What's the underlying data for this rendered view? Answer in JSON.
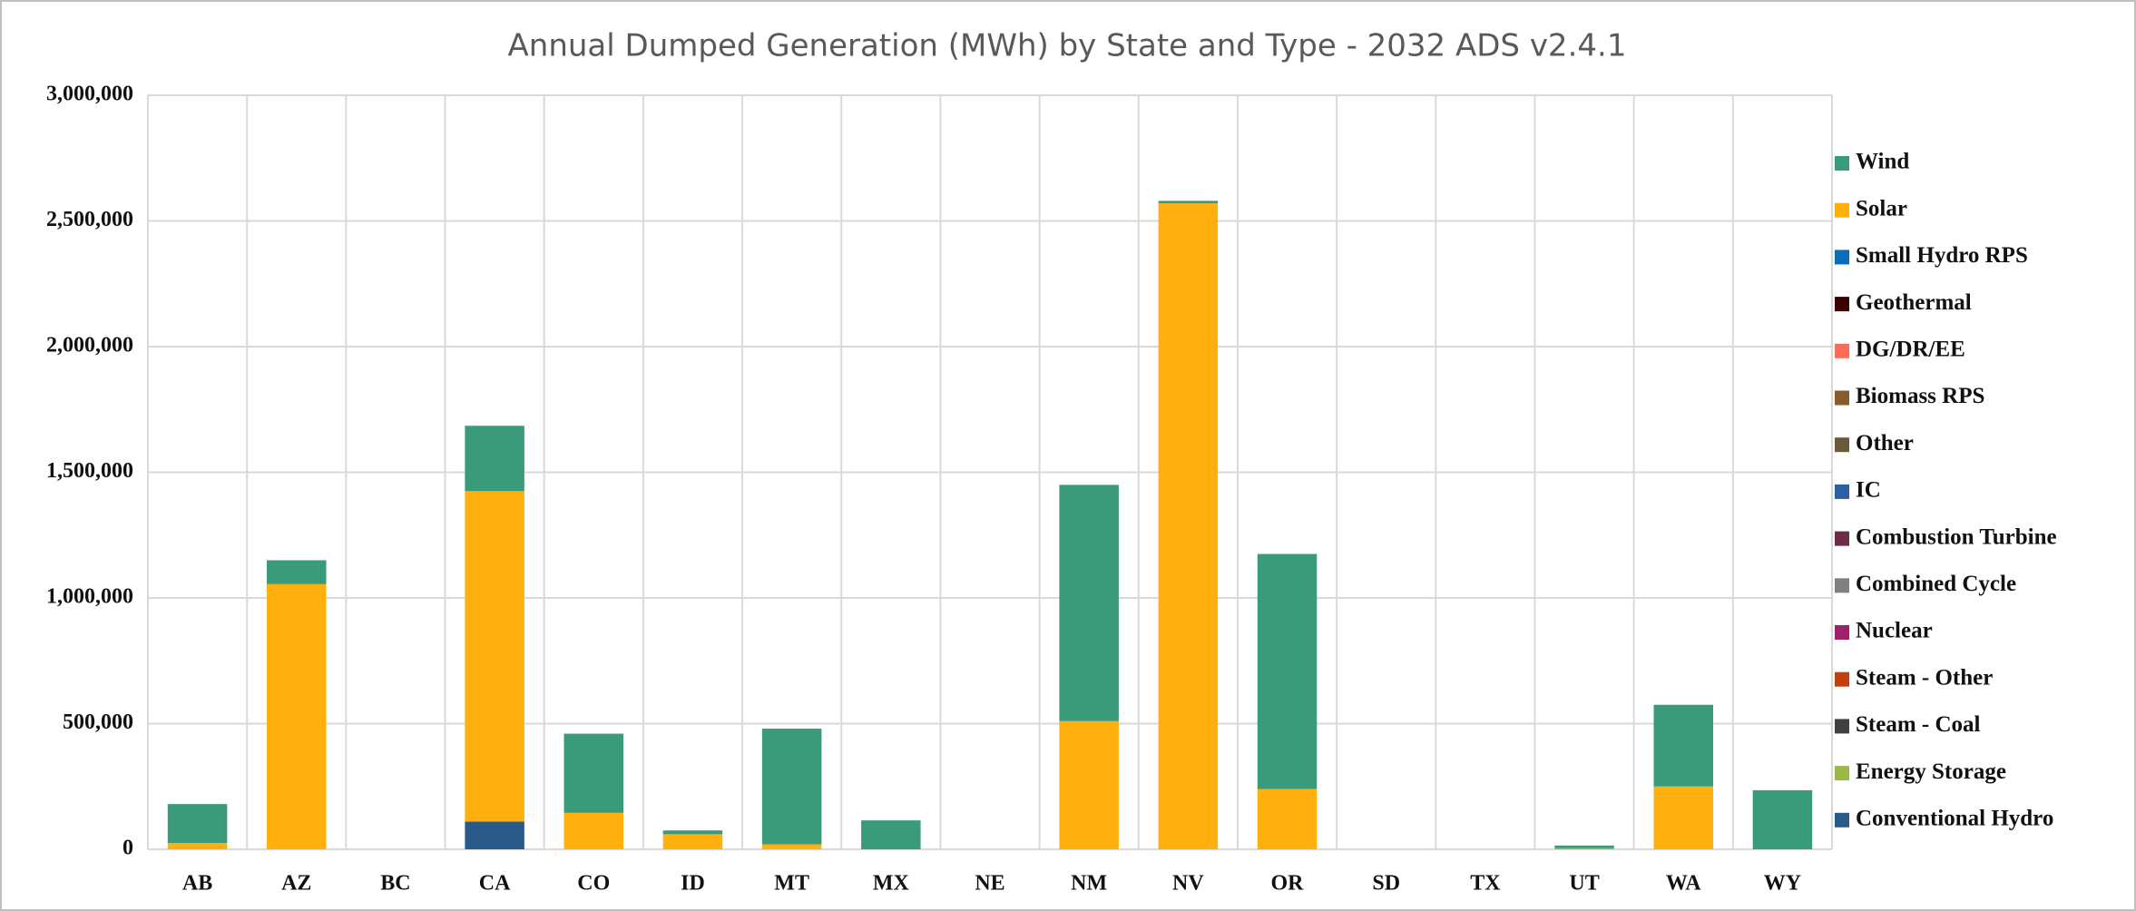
{
  "chart_data": {
    "type": "stacked_bar",
    "title": "Annual Dumped Generation (MWh) by State and Type - 2032 ADS v2.4.1",
    "categories": [
      "AB",
      "AZ",
      "BC",
      "CA",
      "CO",
      "ID",
      "MT",
      "MX",
      "NE",
      "NM",
      "NV",
      "OR",
      "SD",
      "TX",
      "UT",
      "WA",
      "WY"
    ],
    "series": [
      {
        "name": "Wind",
        "color": "#3a9b7a",
        "values": [
          155000,
          95000,
          0,
          260000,
          315000,
          15000,
          460000,
          115000,
          0,
          940000,
          10000,
          935000,
          0,
          0,
          10000,
          325000,
          235000
        ]
      },
      {
        "name": "Solar",
        "color": "#ffb00f",
        "values": [
          25000,
          1055000,
          0,
          1315000,
          145000,
          60000,
          20000,
          0,
          0,
          510000,
          2570000,
          240000,
          0,
          0,
          0,
          250000,
          0
        ]
      },
      {
        "name": "Small Hydro RPS",
        "color": "#0a6eb4",
        "values": [
          0,
          0,
          0,
          0,
          0,
          0,
          0,
          0,
          0,
          0,
          0,
          0,
          0,
          0,
          0,
          0,
          0
        ]
      },
      {
        "name": "Geothermal",
        "color": "#3d0000",
        "values": [
          0,
          0,
          0,
          0,
          0,
          0,
          0,
          0,
          0,
          0,
          0,
          0,
          0,
          0,
          0,
          0,
          0
        ]
      },
      {
        "name": "DG/DR/EE",
        "color": "#ff6b5a",
        "values": [
          0,
          0,
          0,
          0,
          0,
          0,
          0,
          0,
          0,
          0,
          0,
          0,
          0,
          0,
          0,
          0,
          0
        ]
      },
      {
        "name": "Biomass RPS",
        "color": "#8b5a2b",
        "values": [
          0,
          0,
          0,
          0,
          0,
          0,
          0,
          0,
          0,
          0,
          0,
          0,
          0,
          0,
          0,
          0,
          0
        ]
      },
      {
        "name": "Other",
        "color": "#6b5a3a",
        "values": [
          0,
          0,
          0,
          0,
          0,
          0,
          0,
          0,
          0,
          0,
          0,
          0,
          0,
          0,
          0,
          0,
          0
        ]
      },
      {
        "name": "IC",
        "color": "#2e5fa0",
        "values": [
          0,
          0,
          0,
          0,
          0,
          0,
          0,
          0,
          0,
          0,
          0,
          0,
          0,
          0,
          0,
          0,
          0
        ]
      },
      {
        "name": "Combustion Turbine",
        "color": "#6b2d4a",
        "values": [
          0,
          0,
          0,
          0,
          0,
          0,
          0,
          0,
          0,
          0,
          0,
          0,
          0,
          0,
          0,
          0,
          0
        ]
      },
      {
        "name": "Combined Cycle",
        "color": "#808080",
        "values": [
          0,
          0,
          0,
          0,
          0,
          0,
          0,
          0,
          0,
          0,
          0,
          0,
          0,
          0,
          0,
          0,
          0
        ]
      },
      {
        "name": "Nuclear",
        "color": "#a0206b",
        "values": [
          0,
          0,
          0,
          0,
          0,
          0,
          0,
          0,
          0,
          0,
          0,
          0,
          0,
          0,
          0,
          0,
          0
        ]
      },
      {
        "name": "Steam - Other",
        "color": "#c0400e",
        "values": [
          0,
          0,
          0,
          0,
          0,
          0,
          0,
          0,
          0,
          0,
          0,
          0,
          0,
          0,
          0,
          0,
          0
        ]
      },
      {
        "name": "Steam - Coal",
        "color": "#404040",
        "values": [
          0,
          0,
          0,
          0,
          0,
          0,
          0,
          0,
          0,
          0,
          0,
          0,
          0,
          0,
          0,
          0,
          0
        ]
      },
      {
        "name": "Energy Storage",
        "color": "#9ab84a",
        "values": [
          0,
          0,
          0,
          0,
          0,
          0,
          0,
          0,
          0,
          0,
          0,
          0,
          0,
          0,
          5000,
          0,
          0
        ]
      },
      {
        "name": "Conventional Hydro",
        "color": "#2a5a8a",
        "values": [
          0,
          0,
          0,
          110000,
          0,
          0,
          0,
          0,
          0,
          0,
          0,
          0,
          0,
          0,
          0,
          0,
          0
        ]
      }
    ],
    "ylim": [
      0,
      3000000
    ],
    "yticks": [
      0,
      {
        "value": 500000,
        "label": "500,000"
      },
      {
        "value": 1000000,
        "label": "1,000,000"
      },
      {
        "value": 1500000,
        "label": "1,500,000"
      },
      {
        "value": 2000000,
        "label": "2,000,000"
      },
      {
        "value": 2500000,
        "label": "2,500,000"
      },
      {
        "value": 3000000,
        "label": "3,000,000"
      }
    ],
    "grid": true,
    "legend": "right"
  }
}
